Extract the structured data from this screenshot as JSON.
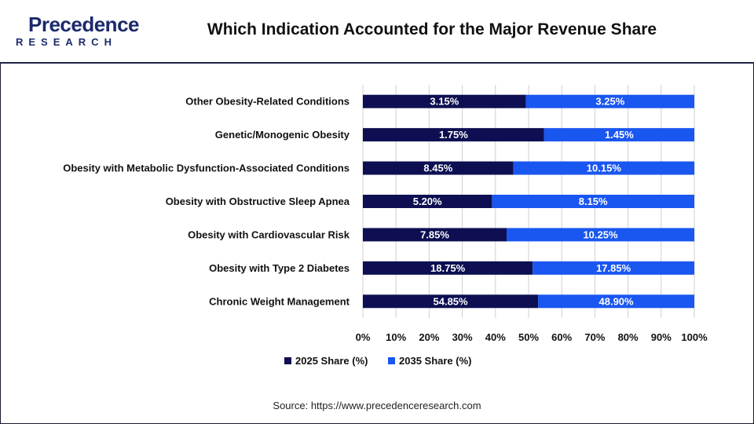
{
  "header": {
    "logo_word": "Precedence",
    "logo_sub": "RESEARCH",
    "title": "Which Indication Accounted for the Major Revenue Share"
  },
  "source": "Source: https://www.precedenceresearch.com",
  "colors": {
    "series_2025": "#0d0f52",
    "series_2035": "#1a56f0",
    "brand": "#1b2a6b"
  },
  "chart_data": {
    "type": "bar",
    "orientation": "horizontal",
    "stacked": "percent",
    "categories": [
      "Other Obesity-Related Conditions",
      "Genetic/Monogenic Obesity",
      "Obesity with Metabolic Dysfunction-Associated Conditions",
      "Obesity with Obstructive Sleep Apnea",
      "Obesity with Cardiovascular Risk",
      "Obesity with Type 2 Diabetes",
      "Chronic Weight Management"
    ],
    "series": [
      {
        "name": "2025 Share (%)",
        "values": [
          3.15,
          1.75,
          8.45,
          5.2,
          7.85,
          18.75,
          54.85
        ],
        "labels": [
          "3.15%",
          "1.75%",
          "8.45%",
          "5.20%",
          "7.85%",
          "18.75%",
          "54.85%"
        ]
      },
      {
        "name": "2035 Share (%)",
        "values": [
          3.25,
          1.45,
          10.15,
          8.15,
          10.25,
          17.85,
          48.9
        ],
        "labels": [
          "3.25%",
          "1.45%",
          "10.15%",
          "8.15%",
          "10.25%",
          "17.85%",
          "48.90%"
        ]
      }
    ],
    "x_ticks": [
      "0%",
      "10%",
      "20%",
      "30%",
      "40%",
      "50%",
      "60%",
      "70%",
      "80%",
      "90%",
      "100%"
    ],
    "xlim": [
      0,
      100
    ],
    "grid": "vertical",
    "legend_position": "bottom"
  }
}
